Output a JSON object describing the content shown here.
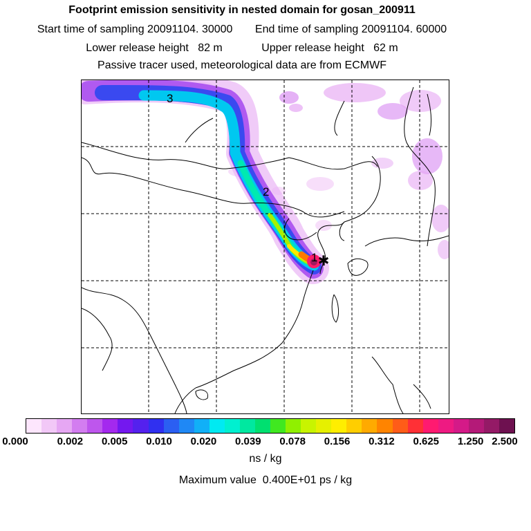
{
  "header": {
    "title": "Footprint emission sensitivity in nested domain for gosan_200911",
    "start_label": "Start time of sampling",
    "start_value": "20091104. 30000",
    "end_label": "End time of sampling",
    "end_value": "20091104. 60000",
    "lower_label": "Lower release height",
    "lower_value": "82 m",
    "upper_label": "Upper release height",
    "upper_value": "62 m",
    "note": "Passive tracer used, meteorological data are from ECMWF"
  },
  "map": {
    "markers": [
      {
        "label": "1"
      },
      {
        "label": "2"
      },
      {
        "label": "3"
      }
    ],
    "receptor_symbol": "✱",
    "plume_colors": [
      "#e9b5f5",
      "#b05af0",
      "#3a49f0",
      "#00c8f0",
      "#00eab0",
      "#a8f000",
      "#ffe800",
      "#ff7a00",
      "#ff1a6a",
      "#9e1a5e"
    ]
  },
  "colorbar": {
    "colors": [
      "#fde6fd",
      "#f2c8f7",
      "#e6a7f3",
      "#d37df0",
      "#be56ed",
      "#a429ee",
      "#7418ef",
      "#5421ee",
      "#3030f0",
      "#2b5ff2",
      "#1f88f5",
      "#11b0f7",
      "#00eaf2",
      "#00f0d0",
      "#00e8a0",
      "#00e070",
      "#40e820",
      "#90f000",
      "#c8f400",
      "#e6f000",
      "#ffee00",
      "#ffce00",
      "#ffaa00",
      "#ff8400",
      "#ff5c18",
      "#ff3036",
      "#ff1a70",
      "#ee1a82",
      "#d41a88",
      "#b41a78",
      "#941a66",
      "#6e1150"
    ],
    "ticks": [
      "0.000",
      "0.002",
      "0.005",
      "0.010",
      "0.020",
      "0.039",
      "0.078",
      "0.156",
      "0.312",
      "0.625",
      "1.250",
      "2.500"
    ],
    "unit": "ns / kg"
  },
  "footer": {
    "max_label": "Maximum value",
    "max_value": "0.400E+01 ps / kg"
  }
}
